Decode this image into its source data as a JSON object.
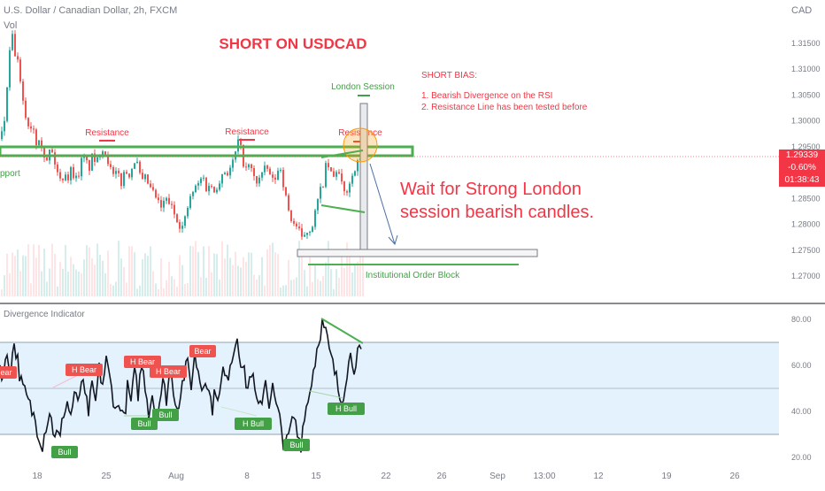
{
  "header": {
    "symbol_line": "U.S. Dollar / Canadian Dollar, 2h, FXCM",
    "vol_label": "Vol",
    "currency": "CAD"
  },
  "price_tag": {
    "price": "1.29339",
    "change": "-0.60%",
    "countdown": "01:38:43"
  },
  "annotations": {
    "headline": "SHORT ON USDCAD",
    "bias_title": "SHORT BIAS:",
    "bias_1": "1. Bearish Divergence on the RSI",
    "bias_2": "2. Resistance Line has been tested before",
    "london_session": "London Session",
    "resistance": "Resistance",
    "support": "pport",
    "wait_line1": "Wait for Strong London",
    "wait_line2": "session bearish candles.",
    "order_block": "Institutional Order Block",
    "indicator_name": "Divergence Indicator"
  },
  "colors": {
    "up": "#26a69a",
    "down": "#ef5350",
    "red_text": "#f23645",
    "green_line": "#4caf50",
    "rsi_band": "#e3f2fd",
    "price_tag": "#f23645"
  },
  "chart_data": [
    {
      "type": "candlestick",
      "title": "U.S. Dollar / Canadian Dollar, 2h, FXCM",
      "y_axis_ticks": [
        "1.31500",
        "1.31000",
        "1.30500",
        "1.30000",
        "1.29500",
        "1.29000",
        "1.28500",
        "1.28000",
        "1.27500",
        "1.27000"
      ],
      "ylim": [
        1.268,
        1.32
      ],
      "x_axis_ticks": [
        "18",
        "25",
        "Aug",
        "8",
        "15",
        "22",
        "26",
        "Sep",
        "13:00",
        "12",
        "19",
        "26"
      ],
      "last_price": 1.29339,
      "close_path": [
        [
          0,
          1.2965
        ],
        [
          4,
          1.3
        ],
        [
          8,
          1.309
        ],
        [
          12,
          1.317
        ],
        [
          16,
          1.313
        ],
        [
          20,
          1.3105
        ],
        [
          24,
          1.304
        ],
        [
          28,
          1.301
        ],
        [
          32,
          1.2985
        ],
        [
          36,
          1.2995
        ],
        [
          40,
          1.296
        ],
        [
          44,
          1.2975
        ],
        [
          48,
          1.294
        ],
        [
          52,
          1.292
        ],
        [
          56,
          1.295
        ],
        [
          60,
          1.2925
        ],
        [
          64,
          1.29
        ],
        [
          68,
          1.288
        ],
        [
          72,
          1.2905
        ],
        [
          76,
          1.289
        ],
        [
          80,
          1.291
        ],
        [
          84,
          1.2885
        ],
        [
          88,
          1.29
        ],
        [
          92,
          1.293
        ],
        [
          96,
          1.292
        ],
        [
          100,
          1.291
        ],
        [
          104,
          1.2935
        ],
        [
          108,
          1.2915
        ],
        [
          112,
          1.294
        ],
        [
          116,
          1.295
        ],
        [
          120,
          1.293
        ],
        [
          124,
          1.2905
        ],
        [
          128,
          1.289
        ],
        [
          132,
          1.29
        ],
        [
          136,
          1.288
        ],
        [
          140,
          1.2905
        ],
        [
          144,
          1.2895
        ],
        [
          148,
          1.291
        ],
        [
          152,
          1.293
        ],
        [
          156,
          1.29
        ],
        [
          160,
          1.288
        ],
        [
          164,
          1.289
        ],
        [
          168,
          1.287
        ],
        [
          172,
          1.286
        ],
        [
          176,
          1.285
        ],
        [
          180,
          1.283
        ],
        [
          184,
          1.284
        ],
        [
          188,
          1.285
        ],
        [
          192,
          1.2835
        ],
        [
          196,
          1.282
        ],
        [
          200,
          1.281
        ],
        [
          204,
          1.279
        ],
        [
          208,
          1.281
        ],
        [
          212,
          1.284
        ],
        [
          216,
          1.286
        ],
        [
          220,
          1.287
        ],
        [
          224,
          1.288
        ],
        [
          228,
          1.2895
        ],
        [
          232,
          1.287
        ],
        [
          236,
          1.288
        ],
        [
          240,
          1.286
        ],
        [
          244,
          1.2875
        ],
        [
          248,
          1.289
        ],
        [
          252,
          1.2905
        ],
        [
          256,
          1.29
        ],
        [
          260,
          1.291
        ],
        [
          264,
          1.293
        ],
        [
          268,
          1.296
        ],
        [
          272,
          1.294
        ],
        [
          276,
          1.29
        ],
        [
          280,
          1.2915
        ],
        [
          284,
          1.29
        ],
        [
          288,
          1.288
        ],
        [
          292,
          1.289
        ],
        [
          296,
          1.29
        ],
        [
          300,
          1.291
        ],
        [
          304,
          1.2895
        ],
        [
          308,
          1.288
        ],
        [
          312,
          1.29
        ],
        [
          316,
          1.291
        ],
        [
          320,
          1.287
        ],
        [
          324,
          1.283
        ],
        [
          328,
          1.281
        ],
        [
          332,
          1.28
        ],
        [
          336,
          1.279
        ],
        [
          340,
          1.277
        ],
        [
          344,
          1.2785
        ],
        [
          348,
          1.279
        ],
        [
          352,
          1.28
        ],
        [
          356,
          1.283
        ],
        [
          360,
          1.286
        ],
        [
          364,
          1.288
        ],
        [
          368,
          1.292
        ],
        [
          372,
          1.29
        ],
        [
          376,
          1.289
        ],
        [
          380,
          1.291
        ],
        [
          384,
          1.288
        ],
        [
          388,
          1.286
        ],
        [
          392,
          1.287
        ],
        [
          396,
          1.289
        ],
        [
          400,
          1.291
        ],
        [
          404,
          1.292
        ],
        [
          408,
          1.2934
        ]
      ]
    },
    {
      "type": "line",
      "title": "Divergence Indicator",
      "y_axis_ticks": [
        "80.00",
        "60.00",
        "40.00",
        "20.00"
      ],
      "ylim": [
        16,
        84
      ],
      "band": [
        30,
        70
      ],
      "midline": 50,
      "labels": [
        "Bear",
        "H Bear",
        "H Bear",
        "H Bear",
        "Bear",
        "Bull",
        "Bull",
        "Bull",
        "H Bull",
        "Bull",
        "H Bull"
      ],
      "rsi_path": [
        [
          0,
          60
        ],
        [
          4,
          55
        ],
        [
          8,
          65
        ],
        [
          12,
          58
        ],
        [
          16,
          70
        ],
        [
          20,
          62
        ],
        [
          24,
          52
        ],
        [
          28,
          48
        ],
        [
          32,
          44
        ],
        [
          36,
          40
        ],
        [
          40,
          36
        ],
        [
          44,
          30
        ],
        [
          48,
          26
        ],
        [
          52,
          34
        ],
        [
          56,
          40
        ],
        [
          60,
          32
        ],
        [
          64,
          30
        ],
        [
          68,
          28
        ],
        [
          72,
          40
        ],
        [
          76,
          44
        ],
        [
          80,
          38
        ],
        [
          84,
          48
        ],
        [
          88,
          42
        ],
        [
          92,
          54
        ],
        [
          96,
          46
        ],
        [
          100,
          40
        ],
        [
          104,
          50
        ],
        [
          108,
          44
        ],
        [
          112,
          58
        ],
        [
          116,
          52
        ],
        [
          120,
          62
        ],
        [
          124,
          54
        ],
        [
          128,
          46
        ],
        [
          132,
          40
        ],
        [
          136,
          44
        ],
        [
          140,
          36
        ],
        [
          144,
          50
        ],
        [
          148,
          44
        ],
        [
          152,
          56
        ],
        [
          156,
          48
        ],
        [
          160,
          60
        ],
        [
          164,
          52
        ],
        [
          168,
          40
        ],
        [
          172,
          48
        ],
        [
          176,
          38
        ],
        [
          180,
          44
        ],
        [
          184,
          52
        ],
        [
          188,
          46
        ],
        [
          192,
          58
        ],
        [
          196,
          50
        ],
        [
          200,
          42
        ],
        [
          204,
          48
        ],
        [
          208,
          56
        ],
        [
          212,
          60
        ],
        [
          216,
          52
        ],
        [
          220,
          64
        ],
        [
          224,
          58
        ],
        [
          228,
          50
        ],
        [
          232,
          56
        ],
        [
          236,
          48
        ],
        [
          240,
          42
        ],
        [
          244,
          50
        ],
        [
          248,
          46
        ],
        [
          252,
          58
        ],
        [
          256,
          52
        ],
        [
          260,
          62
        ],
        [
          264,
          66
        ],
        [
          268,
          74
        ],
        [
          272,
          62
        ],
        [
          276,
          56
        ],
        [
          280,
          50
        ],
        [
          284,
          58
        ],
        [
          288,
          48
        ],
        [
          292,
          40
        ],
        [
          296,
          46
        ],
        [
          300,
          54
        ],
        [
          304,
          44
        ],
        [
          308,
          50
        ],
        [
          312,
          42
        ],
        [
          316,
          36
        ],
        [
          320,
          28
        ],
        [
          324,
          26
        ],
        [
          328,
          32
        ],
        [
          332,
          38
        ],
        [
          336,
          30
        ],
        [
          340,
          26
        ],
        [
          344,
          40
        ],
        [
          348,
          44
        ],
        [
          352,
          54
        ],
        [
          356,
          62
        ],
        [
          360,
          72
        ],
        [
          364,
          78
        ],
        [
          368,
          74
        ],
        [
          372,
          66
        ],
        [
          376,
          60
        ],
        [
          380,
          54
        ],
        [
          384,
          46
        ],
        [
          388,
          48
        ],
        [
          392,
          58
        ],
        [
          396,
          64
        ],
        [
          400,
          60
        ],
        [
          404,
          66
        ],
        [
          408,
          64
        ]
      ]
    }
  ]
}
